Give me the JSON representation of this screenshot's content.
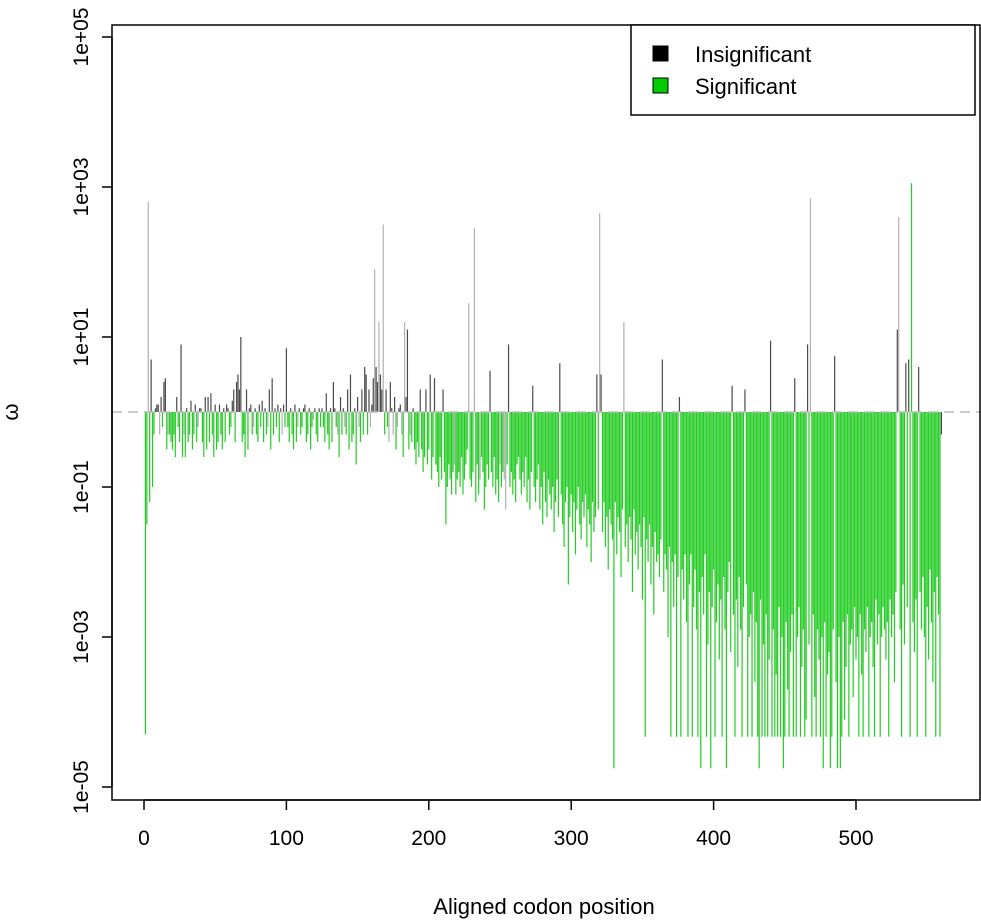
{
  "chart_data": {
    "type": "bar",
    "title": "",
    "xlabel": "Aligned codon position",
    "ylabel": "ω",
    "yscale": "log10",
    "ylim_log10": [
      -5,
      5
    ],
    "xlim": [
      0,
      560
    ],
    "baseline": 1,
    "x_ticks": [
      "0",
      "100",
      "200",
      "300",
      "400",
      "500"
    ],
    "y_ticks": [
      "1e-05",
      "1e-03",
      "1e-01",
      "1e+01",
      "1e+03",
      "1e+05"
    ],
    "legend": {
      "placement": "top-right",
      "entries": [
        {
          "label": "Insignificant",
          "color": "#000000"
        },
        {
          "label": "Significant",
          "color": "#00cc00"
        }
      ]
    },
    "colors": {
      "significant": "#22cc22",
      "insignificant_dark": "#4a4a4a",
      "insignificant_light": "#b0b0b0",
      "baseline": "#bbbbbb"
    },
    "note": "values are log10(omega) per codon position 1..560, approximate readings",
    "log10_omega": [
      -4.3,
      -1.5,
      2.8,
      -1.2,
      0.7,
      -1.0,
      -0.3,
      0.05,
      0.1,
      0.1,
      -0.3,
      0.2,
      -0.2,
      0.4,
      0.45,
      -0.5,
      -0.3,
      -0.3,
      -0.4,
      -0.5,
      -0.3,
      -0.6,
      0.2,
      -0.2,
      -0.4,
      0.9,
      -0.6,
      -0.3,
      -0.6,
      0.05,
      -0.4,
      -0.3,
      0.15,
      -0.5,
      -0.3,
      0.1,
      -0.4,
      -0.2,
      0.05,
      0.05,
      -0.4,
      -0.6,
      0.2,
      -0.5,
      0.2,
      -0.4,
      0.25,
      -0.3,
      -0.6,
      0.1,
      -0.5,
      -0.4,
      0.1,
      -0.3,
      -0.5,
      0.05,
      -0.4,
      0.1,
      0.05,
      -0.3,
      -0.2,
      0.15,
      0.3,
      -0.4,
      0.4,
      0.5,
      0.3,
      1.0,
      -0.4,
      -0.3,
      -0.6,
      0.3,
      -0.5,
      0.05,
      0.1,
      -0.3,
      -0.2,
      0.05,
      -0.3,
      -0.4,
      0.1,
      -0.2,
      0.15,
      -0.4,
      0.05,
      -0.3,
      -0.2,
      0.3,
      -0.5,
      0.45,
      -0.3,
      0.05,
      -0.2,
      0.1,
      -0.4,
      0.05,
      -0.3,
      0.1,
      -0.2,
      0.85,
      -0.2,
      -0.4,
      0.05,
      -0.3,
      -0.5,
      0.1,
      -0.4,
      -0.2,
      0.05,
      -0.3,
      -0.2,
      0.05,
      0.1,
      -0.4,
      -0.3,
      0.05,
      -0.5,
      -0.2,
      -0.1,
      0.05,
      -0.3,
      -0.4,
      0.05,
      -0.2,
      0.05,
      -0.2,
      -0.4,
      0.25,
      -0.3,
      -0.5,
      0.05,
      -0.4,
      0.4,
      0.05,
      -0.2,
      -0.3,
      -0.6,
      0.2,
      -0.3,
      0.05,
      -0.2,
      -0.3,
      0.3,
      -0.5,
      0.5,
      -0.4,
      -0.3,
      0.05,
      -0.7,
      0.2,
      -0.2,
      -0.4,
      0.3,
      -0.3,
      0.6,
      0.5,
      -0.3,
      0.3,
      -0.2,
      0.1,
      0.45,
      1.9,
      0.6,
      0.4,
      1.2,
      0.5,
      0.3,
      2.5,
      -0.3,
      0.3,
      -0.2,
      -0.4,
      0.4,
      0.05,
      -0.3,
      0.2,
      -0.5,
      -0.2,
      0.05,
      0.1,
      -0.3,
      -0.6,
      1.2,
      0.2,
      1.1,
      -0.5,
      -0.3,
      -0.4,
      0.05,
      -0.5,
      -0.7,
      -0.4,
      -0.6,
      0.3,
      -0.5,
      -0.8,
      -0.6,
      0.3,
      -0.7,
      -0.5,
      0.5,
      -0.9,
      -0.6,
      0.45,
      -0.7,
      -0.8,
      -1.0,
      -0.6,
      -0.9,
      0.3,
      -0.8,
      -1.5,
      -1.0,
      -0.7,
      -0.9,
      -1.1,
      -0.8,
      -0.7,
      -1.1,
      -0.9,
      -0.8,
      -1.0,
      -0.6,
      -1.1,
      -0.9,
      -0.7,
      -0.5,
      1.45,
      -0.9,
      -1.0,
      -0.8,
      2.45,
      -1.2,
      -0.7,
      -1.1,
      -0.9,
      -0.6,
      -0.8,
      -1.3,
      -1.0,
      -0.7,
      -0.9,
      0.55,
      -0.8,
      -1.0,
      -0.6,
      -1.1,
      -0.9,
      -1.2,
      -0.7,
      -1.0,
      -0.8,
      -0.9,
      -1.3,
      -0.7,
      0.9,
      -1.0,
      -0.8,
      -1.1,
      -0.9,
      -1.2,
      -0.7,
      -0.6,
      -0.9,
      -1.1,
      -0.8,
      -1.0,
      -0.6,
      -1.2,
      -0.9,
      -1.3,
      -0.8,
      0.35,
      -1.0,
      -1.2,
      -0.9,
      -0.7,
      -1.3,
      -1.0,
      -1.5,
      -0.8,
      -1.2,
      -1.4,
      -0.9,
      -1.1,
      -1.3,
      -1.0,
      -1.6,
      -1.2,
      -0.9,
      -1.4,
      0.65,
      -1.1,
      -1.5,
      -1.8,
      -1.2,
      -1.0,
      -2.3,
      -1.4,
      -1.1,
      -1.6,
      -1.2,
      -1.9,
      -1.3,
      -1.0,
      -1.5,
      -1.7,
      -1.2,
      -1.4,
      -1.1,
      -1.8,
      -1.3,
      -1.5,
      -2.0,
      -1.2,
      -1.6,
      -1.4,
      0.5,
      -1.3,
      2.65,
      0.5,
      -1.6,
      -1.2,
      -1.8,
      -1.4,
      -2.1,
      -1.3,
      -1.5,
      -1.7,
      -4.75,
      -1.2,
      -1.9,
      -1.4,
      -1.6,
      -2.2,
      -1.3,
      1.2,
      -1.8,
      -1.5,
      -2.0,
      -1.4,
      -1.7,
      -2.4,
      -1.3,
      -1.9,
      -1.6,
      -2.1,
      -1.5,
      -1.8,
      -2.5,
      -1.4,
      -4.33,
      -1.7,
      -2.0,
      -1.5,
      -2.3,
      -1.8,
      -2.7,
      -1.6,
      -2.0,
      -1.9,
      -2.2,
      -1.7,
      0.7,
      -2.4,
      -1.9,
      -2.1,
      -3.0,
      -1.8,
      -4.33,
      -2.0,
      -2.6,
      -1.9,
      -4.33,
      -2.2,
      0.2,
      -4.33,
      -2.1,
      -2.5,
      -1.9,
      -2.8,
      -4.33,
      -2.3,
      -1.9,
      -4.33,
      -2.6,
      -2.1,
      -2.9,
      -4.33,
      -2.4,
      -4.75,
      -2.2,
      -2.7,
      -1.9,
      -4.33,
      -3.1,
      -2.4,
      -4.75,
      -2.6,
      -2.1,
      -4.33,
      -2.8,
      -2.3,
      -3.3,
      -2.5,
      -4.33,
      -2.2,
      -2.9,
      -4.75,
      -2.4,
      -2.0,
      -3.2,
      0.35,
      -2.7,
      -4.33,
      -2.5,
      -3.4,
      -2.2,
      -2.9,
      -4.33,
      -2.6,
      0.3,
      -2.3,
      -4.33,
      -3.0,
      -2.7,
      -4.33,
      -2.4,
      -3.6,
      -2.8,
      -4.33,
      -4.75,
      -2.5,
      -4.33,
      -3.1,
      -4.33,
      -2.7,
      -4.33,
      -3.3,
      0.95,
      -4.33,
      -2.9,
      -4.33,
      -3.5,
      -4.33,
      -2.6,
      -4.33,
      -3.0,
      -4.75,
      -4.33,
      -2.8,
      -3.7,
      -4.33,
      -3.2,
      -2.7,
      -4.33,
      0.45,
      -4.33,
      -3.0,
      -2.6,
      -4.33,
      -3.4,
      -2.9,
      -4.33,
      -4.1,
      0.9,
      -3.1,
      2.85,
      -4.33,
      -2.7,
      -3.8,
      -4.33,
      -2.9,
      -3.3,
      -4.33,
      -3.0,
      -4.75,
      -2.8,
      -4.33,
      -3.5,
      -3.2,
      -4.75,
      -4.33,
      -2.9,
      0.75,
      -3.6,
      -4.75,
      -3.0,
      -4.75,
      -4.33,
      -2.8,
      -4.1,
      -3.4,
      -2.7,
      -4.33,
      -3.1,
      -2.9,
      -3.8,
      -2.6,
      -3.3,
      -3.0,
      -4.33,
      -2.7,
      -3.5,
      -4.33,
      -2.9,
      -3.2,
      -2.6,
      -4.33,
      -3.0,
      -2.8,
      -3.4,
      -4.33,
      -2.5,
      -3.1,
      -2.7,
      -4.33,
      -3.0,
      -2.6,
      -2.9,
      -3.3,
      -2.8,
      -4.33,
      -2.5,
      -3.0,
      -2.7,
      -3.6,
      -2.4,
      1.1,
      2.6,
      -2.9,
      -4.33,
      -2.3,
      -3.1,
      0.65,
      -2.6,
      0.7,
      -4.33,
      3.05,
      -2.8,
      -3.2,
      -2.5,
      -4.33,
      0.6,
      -2.4,
      -2.9,
      -2.2,
      -3.0,
      -4.33,
      -2.6,
      -3.3,
      -2.1,
      -2.8,
      -3.6,
      -2.4,
      -4.33,
      -2.2,
      -2.7,
      -4.33,
      -0.3
    ],
    "significant_above_baseline_positions": [
      539
    ],
    "insignificant_below_baseline_positions": [
      11,
      17,
      28,
      38,
      58,
      77,
      87,
      97,
      108,
      119,
      125,
      136,
      141,
      151,
      159,
      172,
      175,
      178,
      181,
      187,
      189,
      218,
      236,
      250,
      253,
      254,
      560
    ]
  }
}
